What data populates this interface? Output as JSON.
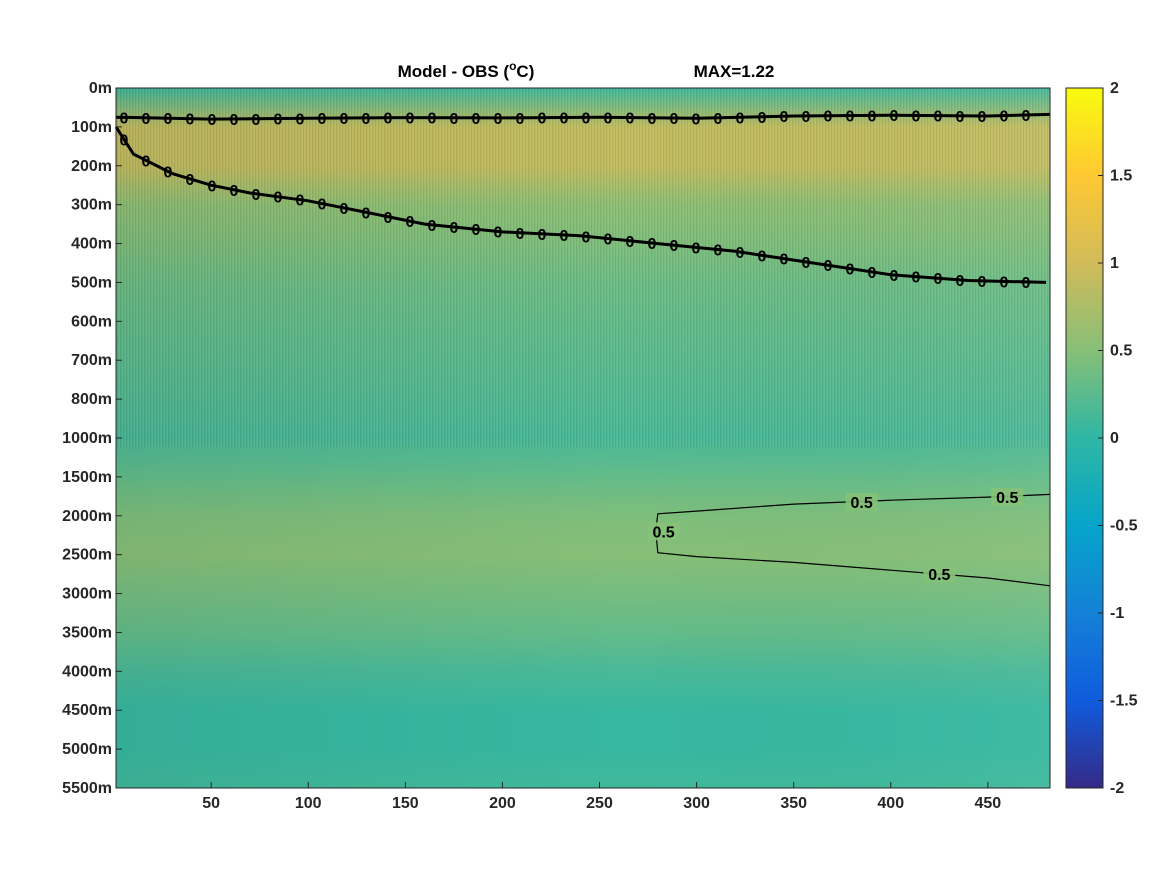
{
  "chart_data": {
    "type": "heatmap",
    "title": "Model - OBS (°C)",
    "title_parts": {
      "main": "Model - OBS (",
      "superscript": "o",
      "unit": "C)"
    },
    "annotation": "MAX=1.22",
    "xlabel": "",
    "ylabel": "",
    "xlim": [
      1,
      482
    ],
    "x_ticks": [
      50,
      100,
      150,
      200,
      250,
      300,
      350,
      400,
      450
    ],
    "y_tick_labels": [
      "0m",
      "100m",
      "200m",
      "300m",
      "400m",
      "500m",
      "600m",
      "700m",
      "800m",
      "1000m",
      "1500m",
      "2000m",
      "2500m",
      "3000m",
      "3500m",
      "4000m",
      "4500m",
      "5000m",
      "5500m"
    ],
    "colorbar": {
      "colormap": "parula",
      "clim": [
        -2,
        2
      ],
      "ticks": [
        -2,
        -1.5,
        -1,
        -0.5,
        0,
        0.5,
        1,
        1.5,
        2
      ],
      "colors": [
        "#352a87",
        "#0f5cdd",
        "#1481d6",
        "#06a4ca",
        "#2eb7a4",
        "#87bf77",
        "#d1bb59",
        "#fec832",
        "#f9fb0e"
      ]
    },
    "depth_profile": [
      {
        "depth": "0m",
        "value": 0.1
      },
      {
        "depth": "100m",
        "value": 0.9
      },
      {
        "depth": "200m",
        "value": 0.9
      },
      {
        "depth": "300m",
        "value": 0.55
      },
      {
        "depth": "400m",
        "value": 0.45
      },
      {
        "depth": "500m",
        "value": 0.35
      },
      {
        "depth": "600m",
        "value": 0.3
      },
      {
        "depth": "700m",
        "value": 0.25
      },
      {
        "depth": "800m",
        "value": 0.2
      },
      {
        "depth": "1000m",
        "value": 0.15
      },
      {
        "depth": "1500m",
        "value": 0.3
      },
      {
        "depth": "2000m",
        "value": 0.45
      },
      {
        "depth": "2500m",
        "value": 0.5
      },
      {
        "depth": "3000m",
        "value": 0.4
      },
      {
        "depth": "3500m",
        "value": 0.3
      },
      {
        "depth": "4000m",
        "value": 0.15
      },
      {
        "depth": "4500m",
        "value": 0.05
      },
      {
        "depth": "5000m",
        "value": 0.05
      },
      {
        "depth": "5500m",
        "value": 0.1
      }
    ],
    "contours": [
      {
        "level": "0",
        "x": [
          1,
          10,
          30,
          50,
          70,
          100,
          130,
          160,
          200,
          240,
          280,
          320,
          360,
          400,
          440,
          480
        ],
        "depth_index": [
          1.0,
          1.7,
          2.2,
          2.5,
          2.7,
          2.9,
          3.2,
          3.5,
          3.7,
          3.8,
          4.0,
          4.2,
          4.5,
          4.8,
          4.95,
          5.0
        ]
      },
      {
        "level": "0",
        "x": [
          1,
          50,
          100,
          150,
          200,
          250,
          300,
          350,
          400,
          450,
          482
        ],
        "depth_index": [
          0.75,
          0.8,
          0.78,
          0.76,
          0.77,
          0.75,
          0.78,
          0.72,
          0.7,
          0.72,
          0.68
        ]
      },
      {
        "level": "0.5",
        "x": [
          482,
          450,
          400,
          350,
          300,
          280,
          279,
          280,
          300,
          350,
          400,
          450,
          482
        ],
        "depth_index": [
          10.45,
          10.52,
          10.6,
          10.7,
          10.88,
          10.95,
          11.4,
          11.95,
          12.05,
          12.2,
          12.4,
          12.6,
          12.8
        ],
        "labels": [
          {
            "text": "0.5",
            "x": 385,
            "depth_index": 10.65
          },
          {
            "text": "0.5",
            "x": 460,
            "depth_index": 10.52
          },
          {
            "text": "0.5",
            "x": 283,
            "depth_index": 11.4
          },
          {
            "text": "0.5",
            "x": 425,
            "depth_index": 12.5
          }
        ]
      }
    ]
  }
}
